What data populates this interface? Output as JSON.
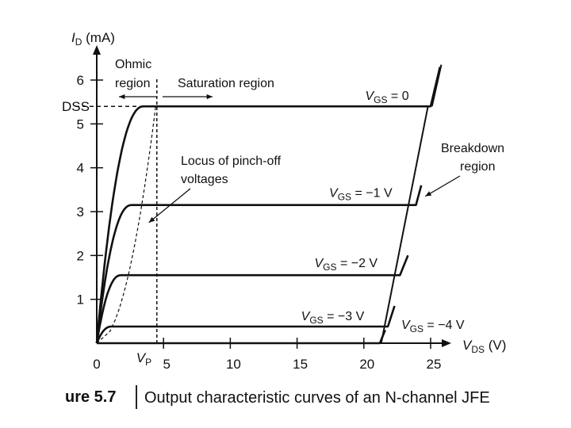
{
  "chart_data": {
    "type": "line",
    "y_axis_label": {
      "main": "I",
      "sub": "D",
      "unit": " (mA)"
    },
    "x_axis_label": {
      "main": "V",
      "sub": "DS",
      "unit": " (V)"
    },
    "xlim": [
      0,
      26
    ],
    "ylim": [
      0,
      6.5
    ],
    "x_ticks": [
      0,
      5,
      10,
      15,
      20,
      25
    ],
    "y_ticks": [
      1,
      2,
      3,
      4,
      5,
      6
    ],
    "vp_label": {
      "main": "V",
      "sub": "P"
    },
    "idss_label": "DSS",
    "idss_value": 5.4,
    "vp_value": 4.5,
    "series": [
      {
        "label_main": "V",
        "label_sub": "GS",
        "label_value": " = 0",
        "saturation": 5.4,
        "knee": 3.5,
        "breakdown_start": 25.0,
        "breakdown_end": 25.7,
        "breakdown_top": 6.3
      },
      {
        "label_main": "V",
        "label_sub": "GS",
        "label_value": " = −1 V",
        "saturation": 3.15,
        "knee": 2.6,
        "breakdown_start": 23.9,
        "breakdown_end": 24.3,
        "breakdown_top": 3.6
      },
      {
        "label_main": "V",
        "label_sub": "GS",
        "label_value": " = −2 V",
        "saturation": 1.55,
        "knee": 1.8,
        "breakdown_start": 22.7,
        "breakdown_end": 23.3,
        "breakdown_top": 2.0
      },
      {
        "label_main": "V",
        "label_sub": "GS",
        "label_value": " = −3 V",
        "saturation": 0.38,
        "knee": 1.1,
        "breakdown_start": 21.8,
        "breakdown_end": 22.3,
        "breakdown_top": 0.85
      },
      {
        "label_main": "V",
        "label_sub": "GS",
        "label_value": " = −4 V",
        "saturation": 0.0,
        "knee": 0.0,
        "breakdown_start": 21.2,
        "breakdown_end": 21.6,
        "breakdown_top": 0.3
      }
    ],
    "annotations": {
      "ohmic": [
        "Ohmic",
        "region"
      ],
      "saturation": "Saturation region",
      "locus": [
        "Locus of pinch-off",
        "voltages"
      ],
      "breakdown": [
        "Breakdown",
        "region"
      ]
    }
  },
  "caption": {
    "number": "ure 5.7",
    "text": "Output characteristic curves of an N-channel JFE"
  }
}
